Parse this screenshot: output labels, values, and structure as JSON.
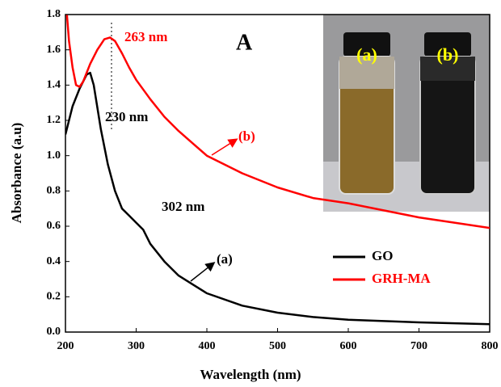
{
  "chart_data": {
    "type": "line",
    "xlabel": "Wavelength (nm)",
    "ylabel": "Absorbance (a.u)",
    "xlim": [
      200,
      800
    ],
    "xticks": [
      200,
      300,
      400,
      500,
      600,
      700,
      800
    ],
    "ylim": [
      0,
      1.8
    ],
    "yticks": [
      {
        "value": 0,
        "label": "0.0"
      },
      0.2,
      0.4,
      0.6,
      0.8,
      {
        "value": 1,
        "label": "1.0"
      },
      1.2,
      1.4,
      1.6,
      1.8
    ],
    "legend": "lower right",
    "series": [
      {
        "name": "GO",
        "color": "#000000",
        "x": [
          200,
          210,
          220,
          230,
          235,
          240,
          250,
          260,
          270,
          280,
          290,
          300,
          310,
          320,
          340,
          360,
          380,
          400,
          450,
          500,
          550,
          600,
          700,
          800
        ],
        "values": [
          1.12,
          1.28,
          1.38,
          1.46,
          1.47,
          1.4,
          1.15,
          0.95,
          0.8,
          0.7,
          0.66,
          0.62,
          0.58,
          0.5,
          0.4,
          0.32,
          0.27,
          0.22,
          0.15,
          0.11,
          0.085,
          0.07,
          0.055,
          0.045
        ]
      },
      {
        "name": "GRH-MA",
        "color": "#ff0000",
        "x": [
          202,
          205,
          210,
          215,
          220,
          225,
          235,
          245,
          255,
          263,
          270,
          280,
          290,
          300,
          320,
          340,
          360,
          380,
          400,
          450,
          500,
          550,
          600,
          650,
          700,
          750,
          800
        ],
        "values": [
          1.8,
          1.65,
          1.5,
          1.4,
          1.39,
          1.42,
          1.52,
          1.6,
          1.66,
          1.67,
          1.65,
          1.58,
          1.5,
          1.43,
          1.32,
          1.22,
          1.14,
          1.07,
          1.0,
          0.9,
          0.82,
          0.76,
          0.73,
          0.69,
          0.65,
          0.62,
          0.59
        ]
      }
    ],
    "annotations": {
      "panel": "A",
      "peak_rgo": "263 nm",
      "peak_go": "230 nm",
      "shoulder_go": "302 nm",
      "curve_a": "(a)",
      "curve_b": "(b)"
    },
    "inset_labels": [
      "(a)",
      "(b)"
    ]
  }
}
